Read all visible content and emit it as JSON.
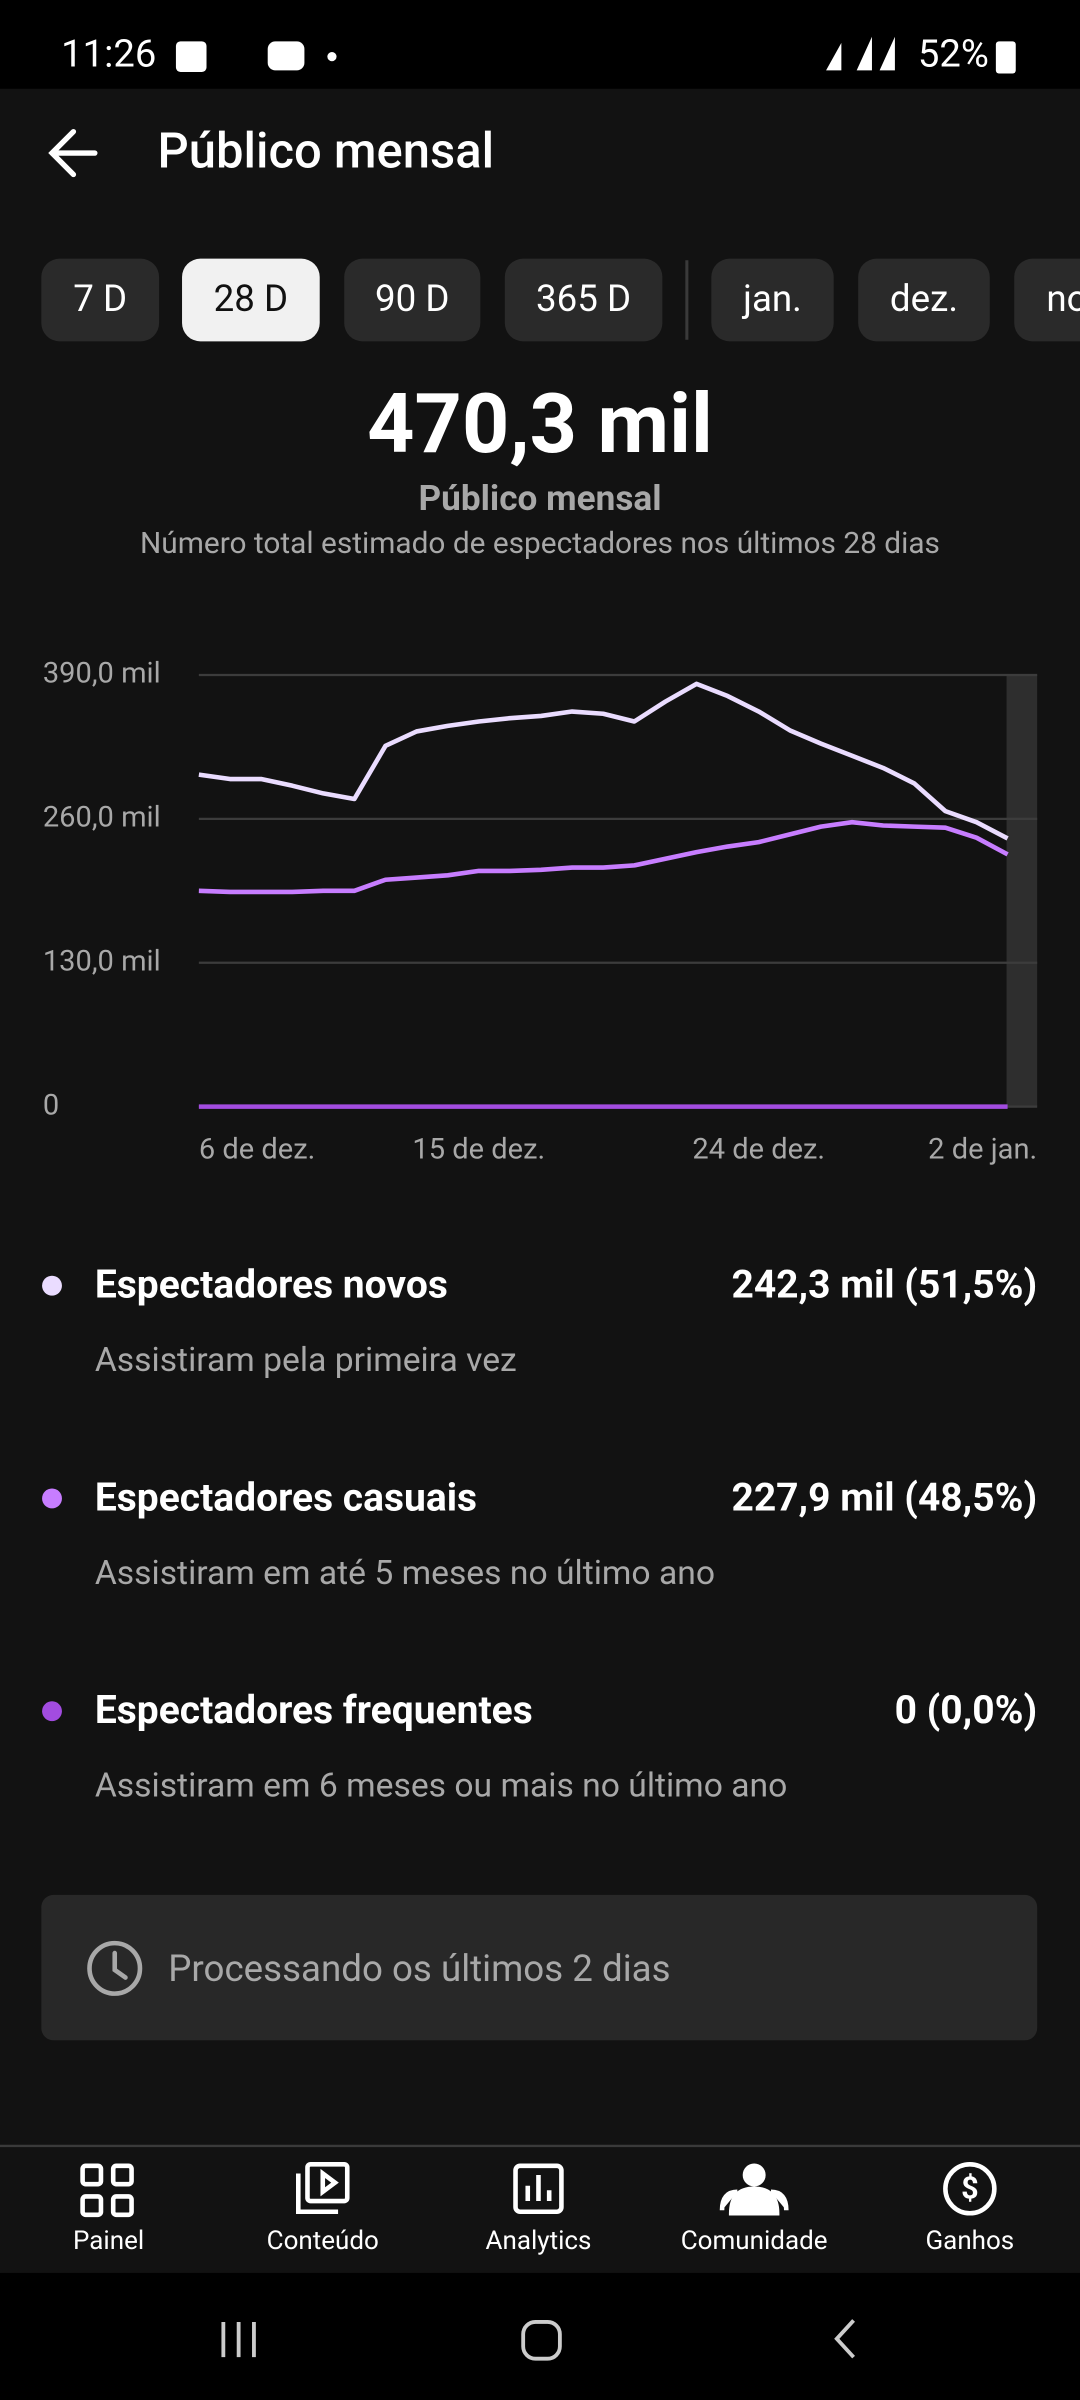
{
  "status_bar": {
    "time": "11:26",
    "battery": "52%"
  },
  "header": {
    "title": "Público mensal"
  },
  "tabs": [
    "7 D",
    "28 D",
    "90 D",
    "365 D",
    "jan.",
    "dez.",
    "nov."
  ],
  "summary": {
    "value": "470,3 mil",
    "label": "Público mensal",
    "description": "Número total estimado de espectadores nos últimos 28 dias"
  },
  "chart_data": {
    "type": "line",
    "categories": [
      "6 de dez.",
      null,
      null,
      null,
      null,
      null,
      null,
      null,
      null,
      "15 de dez.",
      null,
      null,
      null,
      null,
      null,
      null,
      null,
      null,
      "24 de dez.",
      null,
      null,
      null,
      null,
      null,
      null,
      null,
      null,
      "2 de jan."
    ],
    "series": [
      {
        "name": "Espectadores novos",
        "color": "#eadcff",
        "values": [
          300000,
          296000,
          296000,
          290000,
          283000,
          278000,
          326000,
          339000,
          344000,
          348000,
          351000,
          353000,
          357000,
          355000,
          348000,
          366000,
          382000,
          371000,
          357000,
          340000,
          328000,
          317000,
          306000,
          292000,
          267000,
          257000,
          242300,
          null
        ]
      },
      {
        "name": "Espectadores casuais",
        "color": "#c77dff",
        "values": [
          195000,
          194000,
          194000,
          194000,
          195000,
          195000,
          205000,
          207000,
          209000,
          213000,
          213000,
          214000,
          216000,
          216000,
          218000,
          224000,
          230000,
          235000,
          239000,
          246000,
          253000,
          257000,
          254000,
          253000,
          252000,
          243000,
          227900,
          null
        ]
      },
      {
        "name": "Espectadores frequentes",
        "color": "#a24ce0",
        "values": [
          0,
          0,
          0,
          0,
          0,
          0,
          0,
          0,
          0,
          0,
          0,
          0,
          0,
          0,
          0,
          0,
          0,
          0,
          0,
          0,
          0,
          0,
          0,
          0,
          0,
          0,
          0,
          null
        ]
      }
    ],
    "ylim": [
      0,
      390000
    ],
    "yticks": [
      0,
      {
        "value": 130000,
        "label": "130,0 mil"
      },
      {
        "value": 260000,
        "label": "260,0 mil"
      },
      {
        "value": 390000,
        "label": "390,0 mil"
      }
    ],
    "grid": true
  },
  "breakdown": [
    {
      "value": "242,3 mil (51,5%)",
      "description": "Assistiram pela primeira vez"
    },
    {
      "value": "227,9 mil (48,5%)",
      "description": "Assistiram em até 5 meses no último ano"
    },
    {
      "value": "0 (0,0%)",
      "description": "Assistiram em 6 meses ou mais no último ano"
    }
  ],
  "notice": "Processando os últimos 2 dias",
  "nav": [
    "Painel",
    "Conteúdo",
    "Analytics",
    "Comunidade",
    "Ganhos"
  ]
}
